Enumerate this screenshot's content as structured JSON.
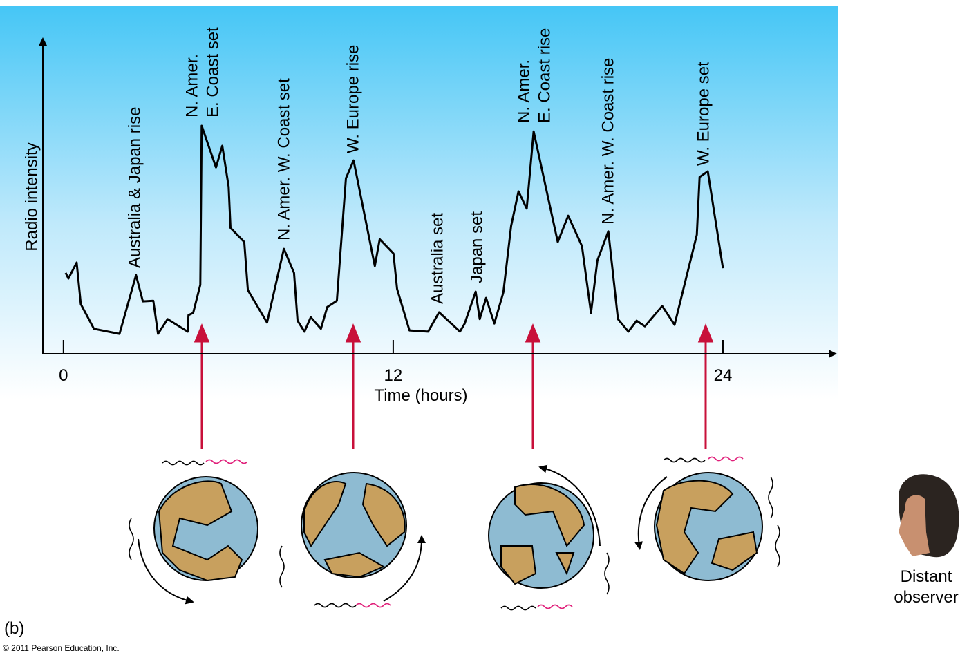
{
  "chart_data": {
    "type": "line",
    "xlabel": "Time (hours)",
    "ylabel": "Radio intensity",
    "xlim": [
      -0.75,
      28
    ],
    "ylim": [
      0,
      100
    ],
    "xticks": [
      0,
      12,
      24
    ],
    "color": "#000000",
    "x": [
      0.08,
      0.18,
      0.48,
      0.63,
      1.11,
      2.04,
      2.64,
      2.89,
      3.27,
      3.44,
      3.79,
      4.52,
      4.55,
      4.72,
      4.98,
      5.03,
      5.55,
      5.78,
      6.01,
      6.08,
      6.58,
      6.71,
      7.41,
      8.02,
      8.39,
      8.52,
      8.77,
      9.0,
      9.37,
      9.6,
      9.95,
      10.28,
      10.56,
      11.33,
      11.51,
      12.01,
      12.14,
      12.59,
      13.27,
      13.67,
      14.43,
      14.6,
      15.0,
      15.15,
      15.38,
      15.68,
      16.01,
      16.29,
      16.56,
      16.86,
      17.11,
      17.99,
      18.37,
      18.87,
      19.2,
      19.43,
      19.83,
      20.18,
      20.56,
      20.86,
      21.16,
      21.79,
      22.24,
      23.05,
      23.15,
      23.45,
      24.0
    ],
    "values": [
      25.9,
      24.1,
      29.2,
      15.9,
      8.0,
      6.4,
      25.2,
      16.8,
      17.0,
      6.4,
      11.1,
      7.1,
      12.4,
      13.1,
      22.1,
      73.0,
      59.7,
      66.6,
      53.5,
      40.3,
      35.8,
      20.4,
      10.0,
      33.6,
      25.9,
      10.6,
      7.1,
      11.7,
      8.0,
      15.0,
      17.0,
      56.2,
      61.9,
      28.1,
      36.7,
      32.1,
      20.8,
      7.5,
      7.1,
      13.3,
      7.1,
      9.7,
      19.9,
      11.1,
      17.9,
      9.7,
      19.7,
      40.9,
      52.0,
      46.5,
      71.2,
      35.8,
      44.2,
      34.5,
      13.1,
      29.9,
      39.2,
      11.1,
      7.1,
      10.6,
      8.8,
      15.3,
      9.3,
      38.1,
      56.6,
      58.4,
      27.4
    ],
    "annotations": [
      [
        "Australia & Japan rise"
      ],
      [
        "N. Amer.",
        "E. Coast set"
      ],
      [
        "N. Amer. W. Coast set"
      ],
      [
        "W. Europe rise"
      ],
      [
        "Australia set"
      ],
      [
        "Japan set"
      ],
      [
        "N. Amer.",
        "E. Coast rise"
      ],
      [
        "N. Amer. W. Coast rise"
      ],
      [
        "W. Europe set"
      ]
    ]
  },
  "observer_label": [
    "Distant",
    "observer"
  ],
  "panel_label": "(b)",
  "copyright": "© 2011 Pearson Education, Inc."
}
